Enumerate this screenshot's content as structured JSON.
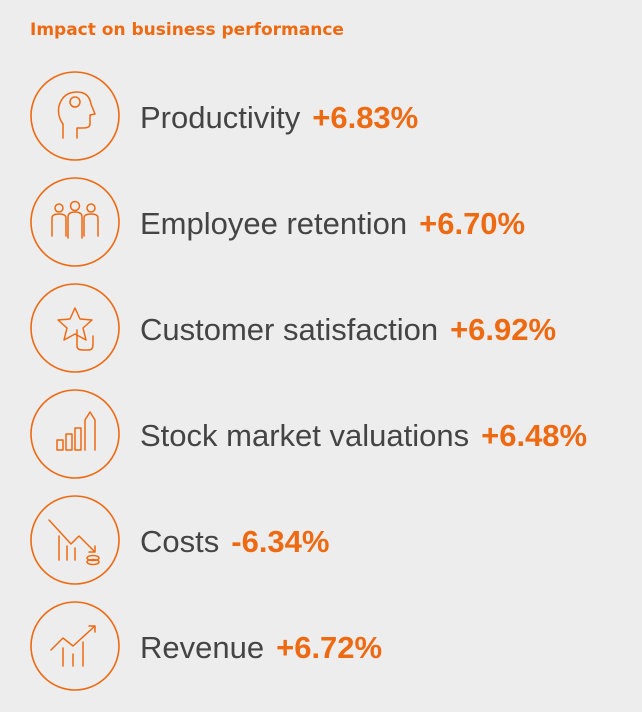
{
  "header": {
    "title": "Impact on business performance"
  },
  "items": [
    {
      "label": "Productivity",
      "value": "+6.83%"
    },
    {
      "label": "Employee retention",
      "value": "+6.70%"
    },
    {
      "label": "Customer satisfaction",
      "value": "+6.92%"
    },
    {
      "label": "Stock market valuations",
      "value": "+6.48%"
    },
    {
      "label": "Costs",
      "value": "-6.34%"
    },
    {
      "label": "Revenue",
      "value": "+6.72%"
    }
  ]
}
